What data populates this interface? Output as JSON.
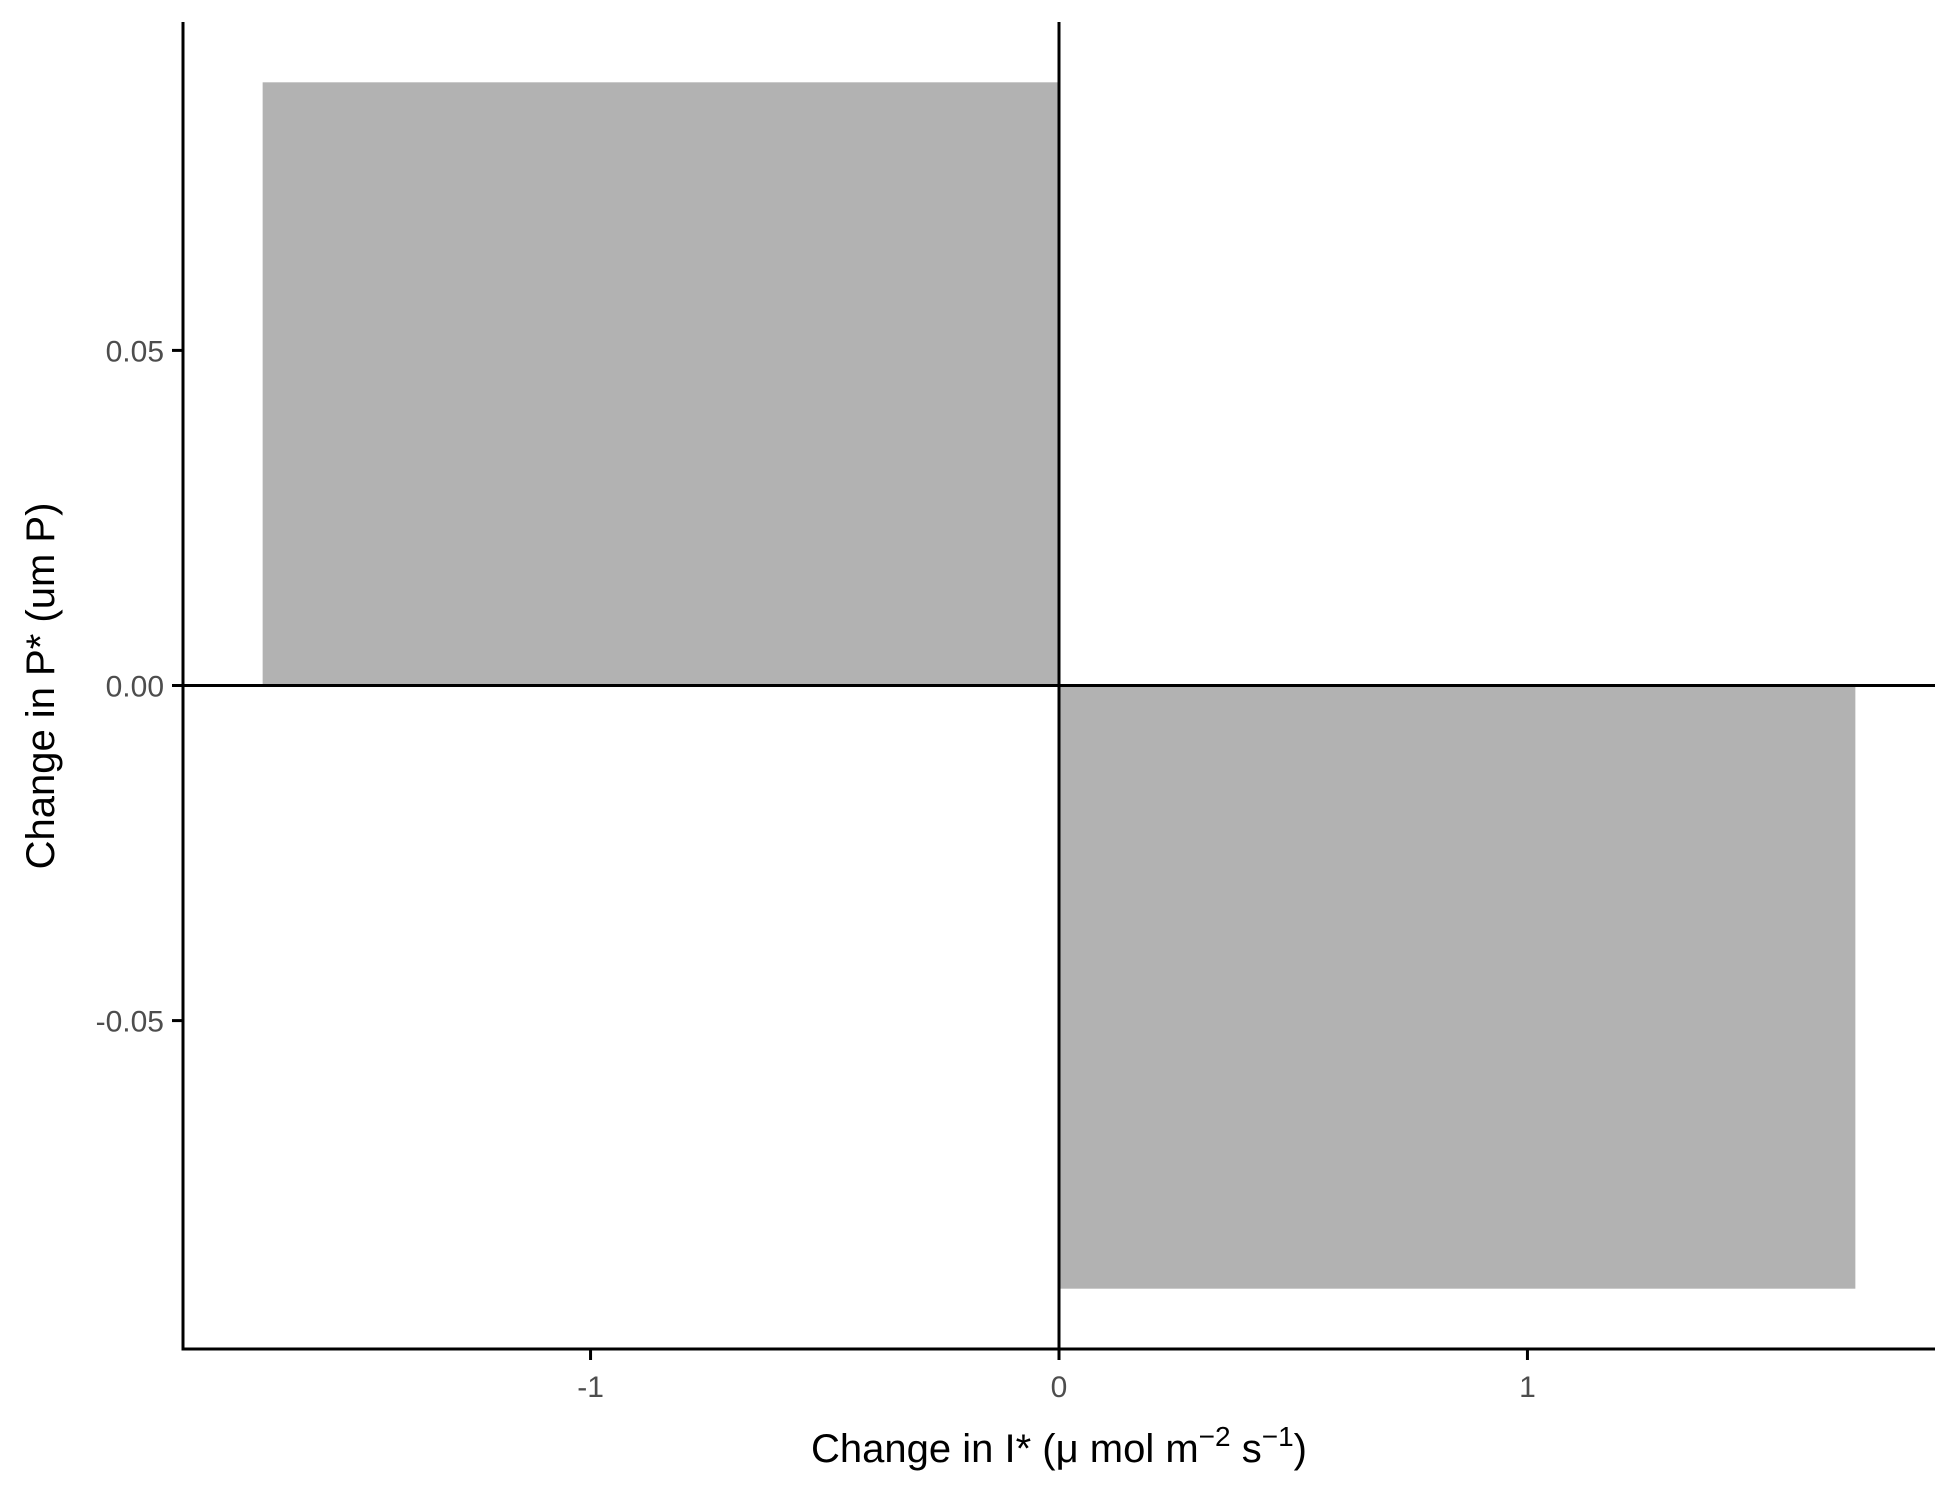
{
  "chart_data": {
    "type": "bar",
    "x": [
      -0.85,
      0.85
    ],
    "values": [
      0.09,
      -0.09
    ],
    "bar_width": 1.7,
    "xlabel": {
      "text_before": "Change in I* (μ mol m",
      "sup1": "−2",
      "text_middle": " s",
      "sup2": "−1",
      "text_after": ")"
    },
    "ylabel": "Change in P* (um P)",
    "xlim": [
      -1.87,
      1.87
    ],
    "ylim": [
      -0.099,
      0.099
    ],
    "x_ticks": [
      {
        "value": -1,
        "label": "-1"
      },
      {
        "value": 0,
        "label": "0"
      },
      {
        "value": 1,
        "label": "1"
      }
    ],
    "y_ticks": [
      {
        "value": 0.05,
        "label": "0.05"
      },
      {
        "value": 0.0,
        "label": "0.00"
      },
      {
        "value": -0.05,
        "label": "-0.05"
      }
    ],
    "reference_lines": {
      "x": 0,
      "y": 0
    },
    "grid": false,
    "legend": "none",
    "colors": {
      "bar": "#b2b2b2",
      "axis": "#000000",
      "tick_text": "#4d4d4d"
    }
  }
}
